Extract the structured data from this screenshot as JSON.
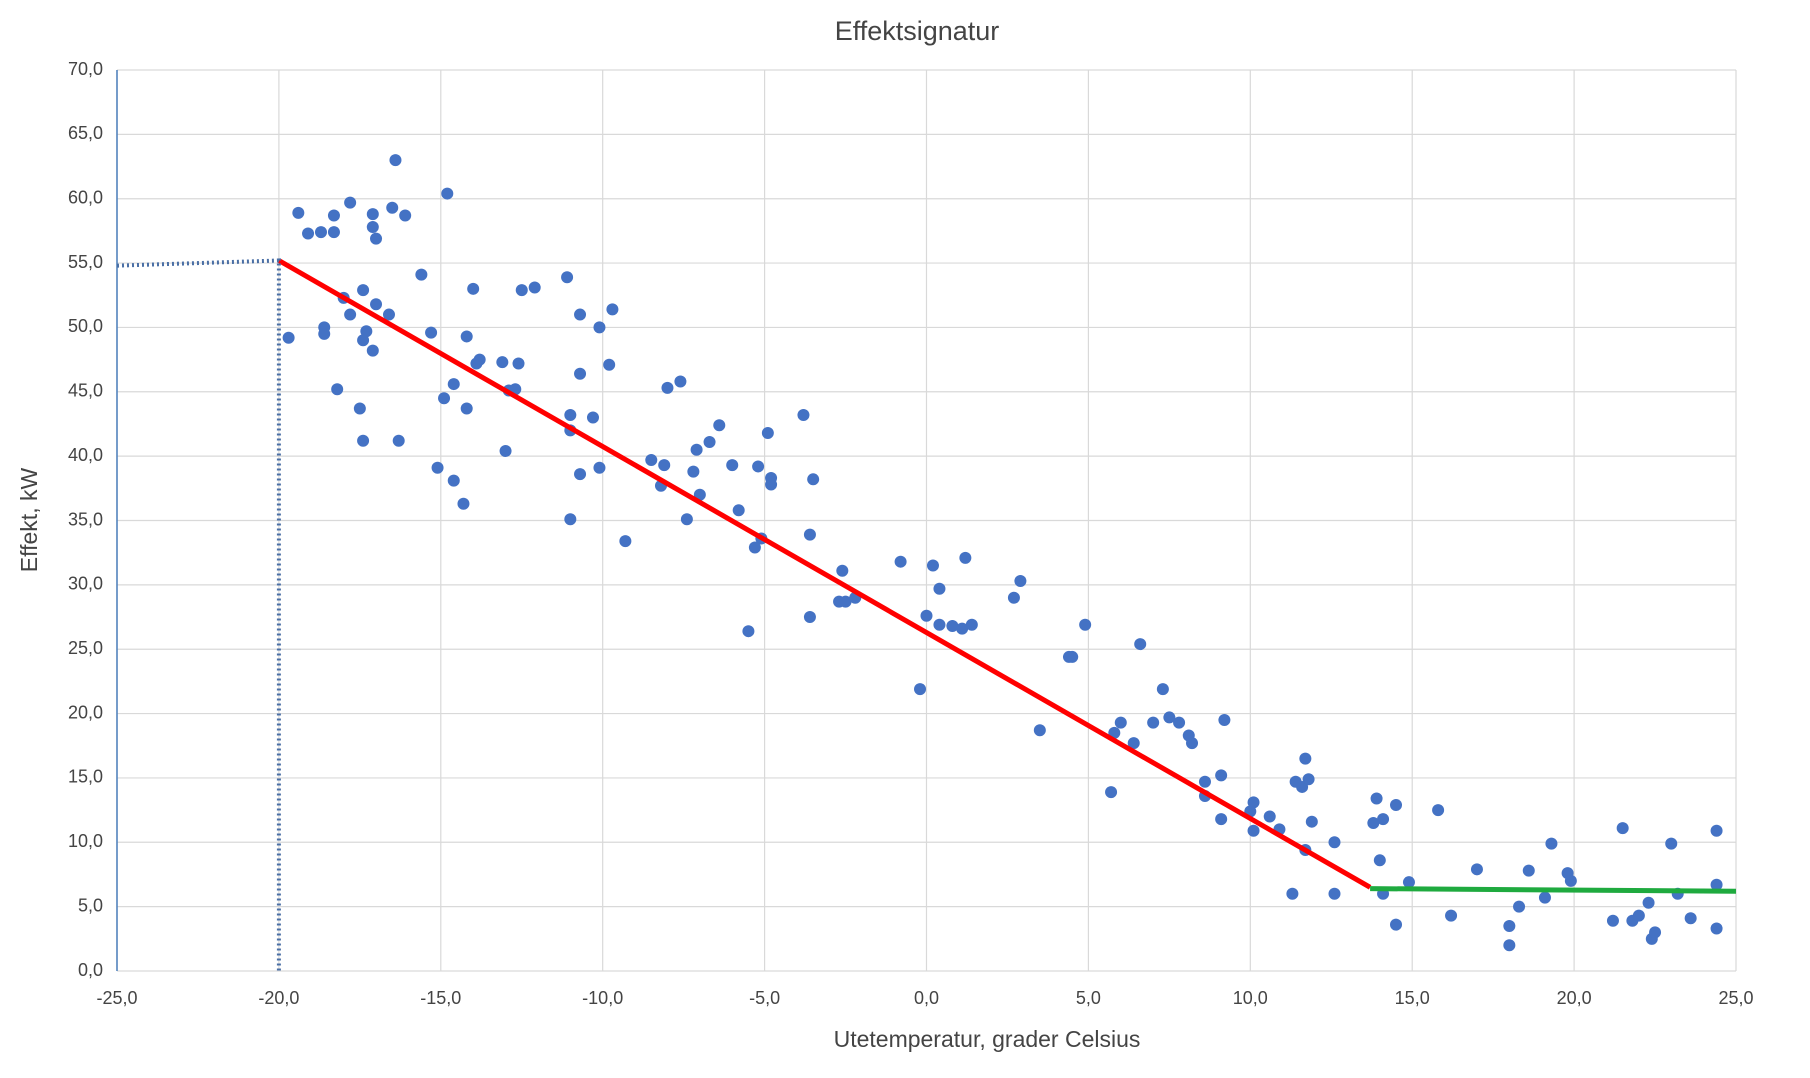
{
  "chart_data": {
    "type": "scatter",
    "title": "Effektsignatur",
    "x_label": "Utetemperatur, grader Celsius",
    "y_label": "Effekt, kW",
    "xlim": [
      -25,
      25
    ],
    "ylim": [
      0,
      70
    ],
    "xticks": [
      {
        "value": -25,
        "label": "-25,0"
      },
      {
        "value": -20,
        "label": "-20,0"
      },
      {
        "value": -15,
        "label": "-15,0"
      },
      {
        "value": -10,
        "label": "-10,0"
      },
      {
        "value": -5,
        "label": "-5,0"
      },
      {
        "value": 0,
        "label": "0,0"
      },
      {
        "value": 5,
        "label": "5,0"
      },
      {
        "value": 10,
        "label": "10,0"
      },
      {
        "value": 15,
        "label": "15,0"
      },
      {
        "value": 20,
        "label": "20,0"
      },
      {
        "value": 25,
        "label": "25,0"
      }
    ],
    "yticks": [
      {
        "value": 0,
        "label": "0,0"
      },
      {
        "value": 5,
        "label": "5,0"
      },
      {
        "value": 10,
        "label": "10,0"
      },
      {
        "value": 15,
        "label": "15,0"
      },
      {
        "value": 20,
        "label": "20,0"
      },
      {
        "value": 25,
        "label": "25,0"
      },
      {
        "value": 30,
        "label": "30,0"
      },
      {
        "value": 35,
        "label": "35,0"
      },
      {
        "value": 40,
        "label": "40,0"
      },
      {
        "value": 45,
        "label": "45,0"
      },
      {
        "value": 50,
        "label": "50,0"
      },
      {
        "value": 55,
        "label": "55,0"
      },
      {
        "value": 60,
        "label": "60,0"
      },
      {
        "value": 65,
        "label": "65,0"
      },
      {
        "value": 70,
        "label": "70,0"
      }
    ],
    "grid": true,
    "series": [
      {
        "color": "#4472c4",
        "x": [
          -19.4,
          -19.1,
          -18.7,
          -18.3,
          -18.3,
          -17.8,
          -17.1,
          -17.1,
          -17.0,
          -16.5,
          -16.1,
          -16.4,
          -14.8,
          -19.7,
          -18.6,
          -18.6,
          -18.0,
          -17.4,
          -17.8,
          -17.0,
          -16.6,
          -17.3,
          -17.4,
          -17.1,
          -18.2,
          -17.5,
          -17.4,
          -16.3,
          -15.6,
          -15.3,
          -14.2,
          -14.0,
          -14.9,
          -14.6,
          -14.2,
          -13.9,
          -13.8,
          -13.1,
          -12.6,
          -12.9,
          -12.7,
          -15.1,
          -14.6,
          -14.3,
          -13.0,
          -12.5,
          -12.1,
          -11.1,
          -10.7,
          -10.1,
          -9.7,
          -10.7,
          -9.8,
          -11.0,
          -11.0,
          -10.3,
          -10.7,
          -10.1,
          -11.0,
          -9.3,
          -8.0,
          -7.6,
          -8.5,
          -8.1,
          -8.2,
          -7.2,
          -7.1,
          -6.7,
          -6.4,
          -7.0,
          -7.4,
          -6.0,
          -5.8,
          -4.9,
          -5.2,
          -4.8,
          -4.8,
          -5.1,
          -5.3,
          -5.5,
          -3.8,
          -3.5,
          -3.6,
          -3.6,
          -2.6,
          -2.7,
          -2.5,
          -2.2,
          -0.8,
          -0.2,
          0.0,
          0.2,
          0.4,
          0.4,
          0.8,
          1.1,
          1.4,
          1.2,
          2.7,
          2.9,
          3.5,
          4.4,
          4.5,
          4.9,
          5.7,
          5.8,
          6.0,
          6.4,
          6.6,
          7.0,
          7.3,
          7.5,
          7.8,
          8.1,
          8.2,
          8.6,
          8.6,
          9.1,
          9.2,
          9.1,
          10.1,
          10.0,
          10.1,
          10.6,
          10.9,
          11.3,
          11.4,
          11.6,
          11.7,
          11.8,
          11.9,
          11.7,
          12.6,
          12.6,
          13.9,
          13.8,
          14.1,
          14.0,
          14.1,
          14.5,
          14.5,
          14.9,
          15.8,
          16.2,
          17.0,
          18.0,
          18.0,
          18.3,
          18.6,
          19.1,
          19.3,
          19.8,
          19.9,
          21.2,
          21.5,
          21.8,
          22.0,
          22.3,
          22.4,
          22.5,
          23.0,
          23.2,
          23.6,
          24.4,
          24.4,
          24.4
        ],
        "values": [
          58.9,
          57.3,
          57.4,
          58.7,
          57.4,
          59.7,
          58.8,
          57.8,
          56.9,
          59.3,
          58.7,
          63.0,
          60.4,
          49.2,
          49.5,
          50.0,
          52.3,
          52.9,
          51.0,
          51.8,
          51.0,
          49.7,
          49.0,
          48.2,
          45.2,
          43.7,
          41.2,
          41.2,
          54.1,
          49.6,
          49.3,
          53.0,
          44.5,
          45.6,
          43.7,
          47.2,
          47.5,
          47.3,
          47.2,
          45.1,
          45.2,
          39.1,
          38.1,
          36.3,
          40.4,
          52.9,
          53.1,
          53.9,
          51.0,
          50.0,
          51.4,
          46.4,
          47.1,
          43.2,
          42.0,
          43.0,
          38.6,
          39.1,
          35.1,
          33.4,
          45.3,
          45.8,
          39.7,
          39.3,
          37.7,
          38.8,
          40.5,
          41.1,
          42.4,
          37.0,
          35.1,
          39.3,
          35.8,
          41.8,
          39.2,
          38.3,
          37.8,
          33.6,
          32.9,
          26.4,
          43.2,
          38.2,
          33.9,
          27.5,
          31.1,
          28.7,
          28.7,
          29.0,
          31.8,
          21.9,
          27.6,
          31.5,
          29.7,
          26.9,
          26.8,
          26.6,
          26.9,
          32.1,
          29.0,
          30.3,
          18.7,
          24.4,
          24.4,
          26.9,
          13.9,
          18.5,
          19.3,
          17.7,
          25.4,
          19.3,
          21.9,
          19.7,
          19.3,
          18.3,
          17.7,
          14.7,
          13.6,
          15.2,
          19.5,
          11.8,
          13.1,
          12.4,
          10.9,
          12.0,
          11.0,
          6.0,
          14.7,
          14.3,
          16.5,
          14.9,
          11.6,
          9.4,
          10.0,
          6.0,
          13.4,
          11.5,
          11.8,
          8.6,
          6.0,
          12.9,
          3.6,
          6.9,
          12.5,
          4.3,
          7.9,
          2.0,
          3.5,
          5.0,
          7.8,
          5.7,
          9.9,
          7.6,
          7.0,
          3.9,
          11.1,
          3.9,
          4.3,
          5.3,
          2.5,
          3.0,
          9.9,
          6.0,
          4.1,
          6.7,
          10.9,
          3.3
        ]
      }
    ],
    "lines": [
      {
        "color": "#ff0000",
        "x": [
          -20,
          13.7
        ],
        "values": [
          55.2,
          6.5
        ]
      },
      {
        "color": "#1faa3f",
        "x": [
          13.7,
          25
        ],
        "values": [
          6.4,
          6.2
        ]
      },
      {
        "color": "#4a6fa5",
        "dotted": true,
        "x": [
          -25,
          -20,
          -20
        ],
        "values": [
          54.8,
          55.2,
          0
        ]
      }
    ]
  }
}
